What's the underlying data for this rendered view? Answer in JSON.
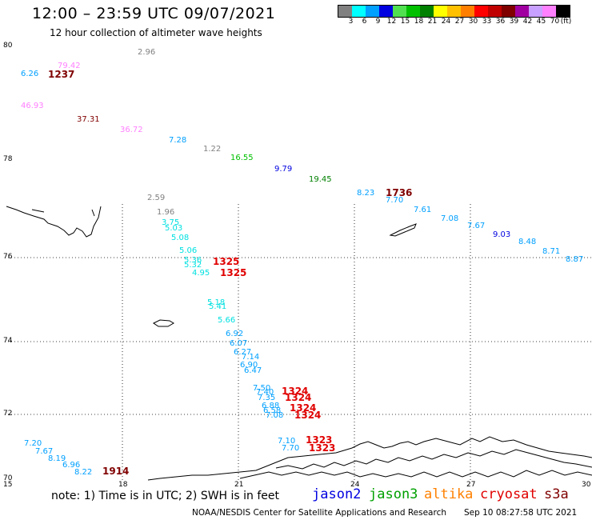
{
  "header": {
    "title": "12:00 – 23:59 UTC 09/07/2021",
    "subtitle": "12 hour collection of altimeter wave heights"
  },
  "legend": {
    "unit": "(ft)",
    "items": [
      {
        "label": "3",
        "color": "#808080"
      },
      {
        "label": "6",
        "color": "#00ffff"
      },
      {
        "label": "9",
        "color": "#00a0ff"
      },
      {
        "label": "12",
        "color": "#0000e0"
      },
      {
        "label": "15",
        "color": "#50e050"
      },
      {
        "label": "18",
        "color": "#00c000"
      },
      {
        "label": "21",
        "color": "#008000"
      },
      {
        "label": "24",
        "color": "#ffff00"
      },
      {
        "label": "27",
        "color": "#ffc000"
      },
      {
        "label": "30",
        "color": "#ff8000"
      },
      {
        "label": "33",
        "color": "#ff0000"
      },
      {
        "label": "36",
        "color": "#c00000"
      },
      {
        "label": "39",
        "color": "#800000"
      },
      {
        "label": "42",
        "color": "#a000a0"
      },
      {
        "label": "45",
        "color": "#c8a0ff"
      },
      {
        "label": "70",
        "color": "#ff80ff"
      },
      {
        "label": "",
        "color": "#000000"
      }
    ]
  },
  "axes": {
    "y_labels": [
      "80",
      "78",
      "76",
      "74",
      "72",
      "70"
    ],
    "x_labels": [
      "15",
      "18",
      "21",
      "24",
      "27",
      "30"
    ]
  },
  "observations": [
    {
      "text": "2.96",
      "color": "#808080"
    },
    {
      "text": "79.42",
      "color": "#ff80ff"
    },
    {
      "text": "6.26",
      "color": "#00a0ff"
    },
    {
      "text": "46.93",
      "color": "#ff80ff"
    },
    {
      "text": "37.31",
      "color": "#800000"
    },
    {
      "text": "36.72",
      "color": "#ff80ff"
    },
    {
      "text": "7.28",
      "color": "#00a0ff"
    },
    {
      "text": "1.22",
      "color": "#808080"
    },
    {
      "text": "16.55",
      "color": "#00c000"
    },
    {
      "text": "9.79",
      "color": "#0000e0"
    },
    {
      "text": "19.45",
      "color": "#008000"
    },
    {
      "text": "8.23",
      "color": "#00a0ff"
    },
    {
      "text": "7.70",
      "color": "#00a0ff"
    },
    {
      "text": "7.61",
      "color": "#00a0ff"
    },
    {
      "text": "7.08",
      "color": "#00a0ff"
    },
    {
      "text": "7.67",
      "color": "#00a0ff"
    },
    {
      "text": "9.03",
      "color": "#0000e0"
    },
    {
      "text": "8.48",
      "color": "#00a0ff"
    },
    {
      "text": "8.71",
      "color": "#00a0ff"
    },
    {
      "text": "8.87",
      "color": "#00a0ff"
    },
    {
      "text": "2.59",
      "color": "#808080"
    },
    {
      "text": "1.96",
      "color": "#808080"
    },
    {
      "text": "3.75",
      "color": "#00e0e0"
    },
    {
      "text": "5.03",
      "color": "#00e0e0"
    },
    {
      "text": "5.08",
      "color": "#00e0e0"
    },
    {
      "text": "5.06",
      "color": "#00e0e0"
    },
    {
      "text": "5.36",
      "color": "#00e0e0"
    },
    {
      "text": "5.32",
      "color": "#00e0e0"
    },
    {
      "text": "4.95",
      "color": "#00e0e0"
    },
    {
      "text": "5.18",
      "color": "#00e0e0"
    },
    {
      "text": "5.41",
      "color": "#00e0e0"
    },
    {
      "text": "5.66",
      "color": "#00e0e0"
    },
    {
      "text": "6.92",
      "color": "#00a0ff"
    },
    {
      "text": "6.07",
      "color": "#00a0ff"
    },
    {
      "text": "6.27",
      "color": "#00a0ff"
    },
    {
      "text": "7.14",
      "color": "#00a0ff"
    },
    {
      "text": "6.90",
      "color": "#00a0ff"
    },
    {
      "text": "6.47",
      "color": "#00a0ff"
    },
    {
      "text": "7.50",
      "color": "#00a0ff"
    },
    {
      "text": "7.40",
      "color": "#00a0ff"
    },
    {
      "text": "7.35",
      "color": "#00a0ff"
    },
    {
      "text": "6.88",
      "color": "#00a0ff"
    },
    {
      "text": "6.58",
      "color": "#00a0ff"
    },
    {
      "text": "7.08",
      "color": "#00a0ff"
    },
    {
      "text": "7.10",
      "color": "#00a0ff"
    },
    {
      "text": "7.70",
      "color": "#00a0ff"
    },
    {
      "text": "7.20",
      "color": "#00a0ff"
    },
    {
      "text": "7.67",
      "color": "#00a0ff"
    },
    {
      "text": "8.19",
      "color": "#00a0ff"
    },
    {
      "text": "6.96",
      "color": "#00a0ff"
    },
    {
      "text": "8.22",
      "color": "#00a0ff"
    }
  ],
  "pass_labels": [
    {
      "text": "1237",
      "color": "#800000"
    },
    {
      "text": "1736",
      "color": "#800000"
    },
    {
      "text": "1325",
      "color": "#e00000"
    },
    {
      "text": "1325",
      "color": "#e00000"
    },
    {
      "text": "1324",
      "color": "#e00000"
    },
    {
      "text": "1324",
      "color": "#e00000"
    },
    {
      "text": "1324",
      "color": "#e00000"
    },
    {
      "text": "1324",
      "color": "#e00000"
    },
    {
      "text": "1323",
      "color": "#e00000"
    },
    {
      "text": "1323",
      "color": "#e00000"
    },
    {
      "text": "1914",
      "color": "#800000"
    }
  ],
  "footer": {
    "note": "note:  1) Time is in UTC;  2) SWH is in feet",
    "satellites": [
      {
        "name": "jason2",
        "color": "#0000e0"
      },
      {
        "name": "jason3",
        "color": "#00a000"
      },
      {
        "name": "altika",
        "color": "#ff8000"
      },
      {
        "name": "cryosat",
        "color": "#e00000"
      },
      {
        "name": "s3a",
        "color": "#800000"
      }
    ],
    "credit": "NOAA/NESDIS Center for Satellite Applications and Research",
    "timestamp": "Sep 10 08:27:58 UTC 2021"
  }
}
